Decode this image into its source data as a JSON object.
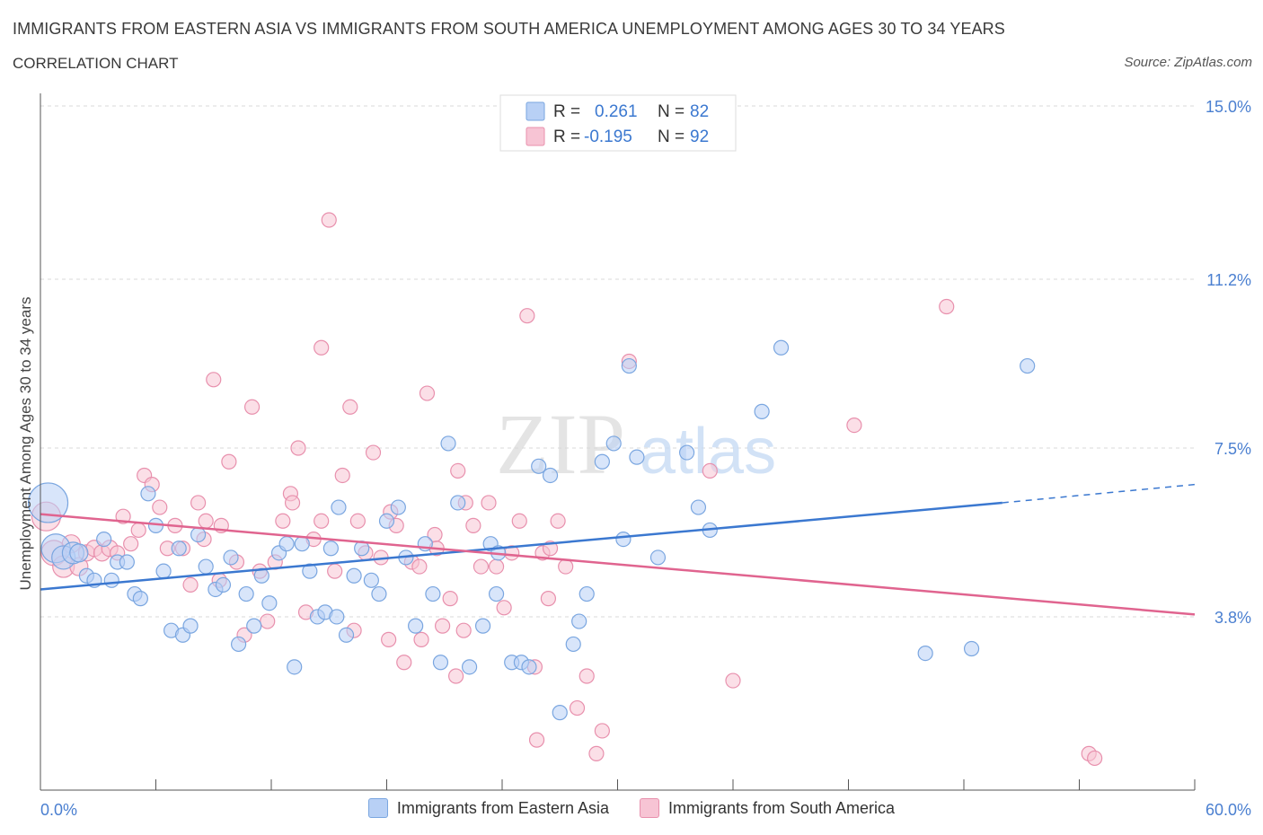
{
  "header": {
    "title": "IMMIGRANTS FROM EASTERN ASIA VS IMMIGRANTS FROM SOUTH AMERICA UNEMPLOYMENT AMONG AGES 30 TO 34 YEARS",
    "subtitle": "CORRELATION CHART",
    "source": "Source: ZipAtlas.com"
  },
  "watermark": {
    "zip": "ZIP",
    "atlas": "atlas"
  },
  "stats_legend": [
    {
      "r_label": "R =",
      "r_value": "0.261",
      "n_label": "N =",
      "n_value": "82"
    },
    {
      "r_label": "R =",
      "r_value": "-0.195",
      "n_label": "N =",
      "n_value": "92"
    }
  ],
  "colors": {
    "blue_fill": "#b8d0f5",
    "blue_stroke": "#7aa6e0",
    "blue_line": "#3b78d0",
    "pink_fill": "#f7c4d4",
    "pink_stroke": "#e890ad",
    "pink_line": "#e0648f",
    "tick_label": "#4a7fd0",
    "grid": "#d8d8d8"
  },
  "chart_data": {
    "type": "scatter",
    "xlabel": "",
    "ylabel": "Unemployment Among Ages 30 to 34 years",
    "xlim": [
      0,
      60
    ],
    "ylim": [
      0,
      15
    ],
    "x_tick_labels": [
      "0.0%",
      "60.0%"
    ],
    "y_ticks": [
      3.8,
      7.5,
      11.2,
      15.0
    ],
    "y_tick_labels": [
      "3.8%",
      "7.5%",
      "11.2%",
      "15.0%"
    ],
    "grid": true,
    "legend_position": "bottom",
    "series": [
      {
        "name": "Immigrants from Eastern Asia",
        "color": "#b8d0f5",
        "trend": {
          "x": [
            0,
            50
          ],
          "y": [
            4.4,
            6.3
          ],
          "dashed_to": [
            60,
            6.7
          ]
        },
        "points": [
          [
            0.4,
            6.3,
            22
          ],
          [
            0.8,
            5.3,
            16
          ],
          [
            1.2,
            5.1,
            13
          ],
          [
            1.7,
            5.2,
            12
          ],
          [
            2.0,
            5.2,
            10
          ],
          [
            2.4,
            4.7,
            8
          ],
          [
            2.8,
            4.6,
            8
          ],
          [
            3.3,
            5.5,
            8
          ],
          [
            3.7,
            4.6,
            8
          ],
          [
            4.0,
            5.0,
            8
          ],
          [
            4.5,
            5.0,
            8
          ],
          [
            4.9,
            4.3,
            8
          ],
          [
            5.2,
            4.2,
            8
          ],
          [
            5.6,
            6.5,
            8
          ],
          [
            6.0,
            5.8,
            8
          ],
          [
            6.4,
            4.8,
            8
          ],
          [
            6.8,
            3.5,
            8
          ],
          [
            7.2,
            5.3,
            8
          ],
          [
            7.4,
            3.4,
            8
          ],
          [
            7.8,
            3.6,
            8
          ],
          [
            8.2,
            5.6,
            8
          ],
          [
            8.6,
            4.9,
            8
          ],
          [
            9.1,
            4.4,
            8
          ],
          [
            9.5,
            4.5,
            8
          ],
          [
            9.9,
            5.1,
            8
          ],
          [
            10.3,
            3.2,
            8
          ],
          [
            10.7,
            4.3,
            8
          ],
          [
            11.1,
            3.6,
            8
          ],
          [
            11.5,
            4.7,
            8
          ],
          [
            11.9,
            4.1,
            8
          ],
          [
            12.4,
            5.2,
            8
          ],
          [
            12.8,
            5.4,
            8
          ],
          [
            13.2,
            2.7,
            8
          ],
          [
            13.6,
            5.4,
            8
          ],
          [
            14.0,
            4.8,
            8
          ],
          [
            14.4,
            3.8,
            8
          ],
          [
            14.8,
            3.9,
            8
          ],
          [
            15.1,
            5.3,
            8
          ],
          [
            15.5,
            6.2,
            8
          ],
          [
            15.9,
            3.4,
            8
          ],
          [
            16.3,
            4.7,
            8
          ],
          [
            16.7,
            5.3,
            8
          ],
          [
            17.2,
            4.6,
            8
          ],
          [
            17.6,
            4.3,
            8
          ],
          [
            18.0,
            5.9,
            8
          ],
          [
            18.6,
            6.2,
            8
          ],
          [
            19.0,
            5.1,
            8
          ],
          [
            19.5,
            3.6,
            8
          ],
          [
            20.0,
            5.4,
            8
          ],
          [
            20.4,
            4.3,
            8
          ],
          [
            20.8,
            2.8,
            8
          ],
          [
            21.2,
            7.6,
            8
          ],
          [
            21.7,
            6.3,
            8
          ],
          [
            22.3,
            2.7,
            8
          ],
          [
            23.0,
            3.6,
            8
          ],
          [
            23.4,
            5.4,
            8
          ],
          [
            23.8,
            5.2,
            8
          ],
          [
            24.5,
            2.8,
            8
          ],
          [
            25.0,
            2.8,
            8
          ],
          [
            25.4,
            2.7,
            8
          ],
          [
            25.9,
            7.1,
            8
          ],
          [
            26.5,
            6.9,
            8
          ],
          [
            27.0,
            1.7,
            8
          ],
          [
            27.7,
            3.2,
            8
          ],
          [
            28.0,
            3.7,
            8
          ],
          [
            28.4,
            4.3,
            8
          ],
          [
            29.2,
            7.2,
            8
          ],
          [
            29.8,
            7.6,
            8
          ],
          [
            30.3,
            5.5,
            8
          ],
          [
            30.6,
            9.3,
            8
          ],
          [
            31.0,
            7.3,
            8
          ],
          [
            32.1,
            5.1,
            8
          ],
          [
            33.6,
            7.4,
            8
          ],
          [
            34.2,
            6.2,
            8
          ],
          [
            34.8,
            5.7,
            8
          ],
          [
            37.5,
            8.3,
            8
          ],
          [
            38.5,
            9.7,
            8
          ],
          [
            46.0,
            3.0,
            8
          ],
          [
            48.4,
            3.1,
            8
          ],
          [
            51.3,
            9.3,
            8
          ],
          [
            23.7,
            4.3,
            8
          ],
          [
            15.4,
            3.8,
            8
          ]
        ]
      },
      {
        "name": "Immigrants from South America",
        "color": "#f7c4d4",
        "trend": {
          "x": [
            0,
            60
          ],
          "y": [
            6.05,
            3.85
          ]
        },
        "points": [
          [
            0.3,
            6.0,
            16
          ],
          [
            0.7,
            5.2,
            14
          ],
          [
            1.2,
            4.9,
            12
          ],
          [
            1.6,
            5.4,
            10
          ],
          [
            2.0,
            4.9,
            10
          ],
          [
            2.4,
            5.2,
            9
          ],
          [
            2.8,
            5.3,
            9
          ],
          [
            3.2,
            5.2,
            9
          ],
          [
            3.6,
            5.3,
            9
          ],
          [
            4.0,
            5.2,
            8
          ],
          [
            4.3,
            6.0,
            8
          ],
          [
            4.7,
            5.4,
            8
          ],
          [
            5.1,
            5.7,
            8
          ],
          [
            5.4,
            6.9,
            8
          ],
          [
            5.8,
            6.7,
            8
          ],
          [
            6.2,
            6.2,
            8
          ],
          [
            6.6,
            5.3,
            8
          ],
          [
            7.0,
            5.8,
            8
          ],
          [
            7.4,
            5.3,
            8
          ],
          [
            7.8,
            4.5,
            8
          ],
          [
            8.2,
            6.3,
            8
          ],
          [
            8.6,
            5.9,
            8
          ],
          [
            9.0,
            9.0,
            8
          ],
          [
            9.4,
            5.8,
            8
          ],
          [
            9.8,
            7.2,
            8
          ],
          [
            10.2,
            5.0,
            8
          ],
          [
            10.6,
            3.4,
            8
          ],
          [
            11.0,
            8.4,
            8
          ],
          [
            11.4,
            4.8,
            8
          ],
          [
            11.8,
            3.7,
            8
          ],
          [
            12.2,
            5.0,
            8
          ],
          [
            12.6,
            5.9,
            8
          ],
          [
            13.0,
            6.5,
            8
          ],
          [
            13.4,
            7.5,
            8
          ],
          [
            13.8,
            3.9,
            8
          ],
          [
            14.2,
            5.5,
            8
          ],
          [
            14.6,
            5.9,
            8
          ],
          [
            15.0,
            12.5,
            8
          ],
          [
            15.3,
            4.8,
            8
          ],
          [
            15.7,
            6.9,
            8
          ],
          [
            16.1,
            8.4,
            8
          ],
          [
            16.5,
            5.9,
            8
          ],
          [
            16.9,
            5.2,
            8
          ],
          [
            17.3,
            7.4,
            8
          ],
          [
            17.7,
            5.1,
            8
          ],
          [
            18.1,
            3.3,
            8
          ],
          [
            18.5,
            5.8,
            8
          ],
          [
            18.9,
            2.8,
            8
          ],
          [
            19.3,
            5.0,
            8
          ],
          [
            19.7,
            4.9,
            8
          ],
          [
            20.1,
            8.7,
            8
          ],
          [
            20.5,
            5.6,
            8
          ],
          [
            20.9,
            3.6,
            8
          ],
          [
            21.3,
            4.2,
            8
          ],
          [
            21.7,
            7.0,
            8
          ],
          [
            22.1,
            6.3,
            8
          ],
          [
            22.5,
            5.8,
            8
          ],
          [
            22.9,
            4.9,
            8
          ],
          [
            23.3,
            6.3,
            8
          ],
          [
            23.7,
            4.9,
            8
          ],
          [
            24.1,
            4.0,
            8
          ],
          [
            24.5,
            5.2,
            8
          ],
          [
            24.9,
            5.9,
            8
          ],
          [
            25.3,
            10.4,
            8
          ],
          [
            25.7,
            2.7,
            8
          ],
          [
            26.1,
            5.2,
            8
          ],
          [
            26.5,
            5.3,
            8
          ],
          [
            26.9,
            5.9,
            8
          ],
          [
            27.3,
            4.9,
            8
          ],
          [
            27.9,
            1.8,
            8
          ],
          [
            28.4,
            2.5,
            8
          ],
          [
            28.9,
            0.8,
            8
          ],
          [
            29.2,
            1.3,
            8
          ],
          [
            30.6,
            9.4,
            8
          ],
          [
            25.8,
            1.1,
            8
          ],
          [
            34.8,
            7.0,
            8
          ],
          [
            36.0,
            2.4,
            8
          ],
          [
            42.3,
            8.0,
            8
          ],
          [
            47.1,
            10.6,
            8
          ],
          [
            54.5,
            0.8,
            8
          ],
          [
            54.8,
            0.7,
            8
          ],
          [
            22.0,
            3.5,
            8
          ],
          [
            9.3,
            4.6,
            8
          ],
          [
            14.6,
            9.7,
            8
          ],
          [
            18.2,
            6.1,
            8
          ],
          [
            19.8,
            3.3,
            8
          ],
          [
            20.6,
            5.3,
            8
          ],
          [
            26.4,
            4.2,
            8
          ],
          [
            8.5,
            5.5,
            8
          ],
          [
            13.1,
            6.3,
            8
          ],
          [
            16.3,
            3.5,
            8
          ],
          [
            21.6,
            2.5,
            8
          ]
        ]
      }
    ]
  }
}
